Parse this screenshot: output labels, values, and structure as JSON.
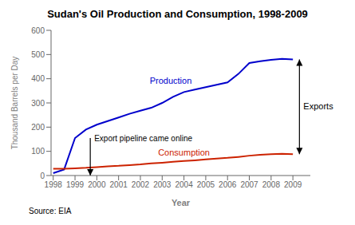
{
  "chart_data": {
    "type": "line",
    "title": "Sudan's Oil Production and Consumption, 1998-2009",
    "xlabel": "Year",
    "ylabel": "Thousand Barrels per Day",
    "source": "Source: EIA",
    "x": [
      1998,
      1998.5,
      1999,
      1999.5,
      2000,
      2000.5,
      2001,
      2001.5,
      2002,
      2002.5,
      2003,
      2003.5,
      2004,
      2004.5,
      2005,
      2005.5,
      2006,
      2006.5,
      2007,
      2007.5,
      2008,
      2008.5,
      2009
    ],
    "series": [
      {
        "name": "Production",
        "color": "#0000cc",
        "values": [
          10,
          25,
          155,
          190,
          210,
          225,
          240,
          255,
          268,
          280,
          300,
          325,
          345,
          355,
          365,
          375,
          385,
          420,
          465,
          472,
          478,
          482,
          480
        ]
      },
      {
        "name": "Consumption",
        "color": "#cc2200",
        "values": [
          28,
          28,
          30,
          32,
          35,
          38,
          40,
          43,
          46,
          50,
          53,
          57,
          60,
          63,
          67,
          70,
          73,
          77,
          82,
          86,
          88,
          90,
          88
        ]
      }
    ],
    "xlim": [
      1997.9,
      2009.8
    ],
    "xticks": [
      1998,
      1999,
      2000,
      2001,
      2002,
      2003,
      2004,
      2005,
      2006,
      2007,
      2008,
      2009
    ],
    "ylim": [
      0,
      600
    ],
    "yticks": [
      0,
      100,
      200,
      300,
      400,
      500,
      600
    ],
    "grid": false,
    "annotations": [
      {
        "text": "Export pipeline came online",
        "type": "arrow",
        "x": 1999.7,
        "y": [
          0,
          155
        ]
      },
      {
        "text": "Exports",
        "type": "double_arrow",
        "x": 2009.3,
        "y": [
          88,
          480
        ]
      }
    ]
  }
}
